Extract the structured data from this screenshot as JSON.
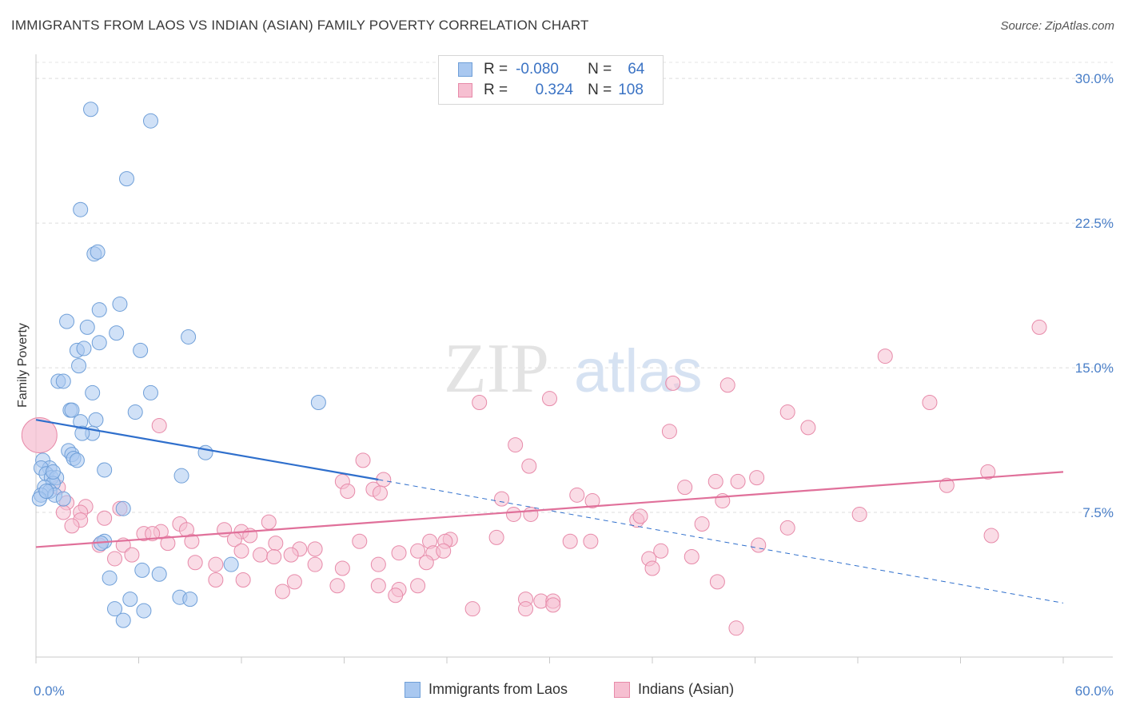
{
  "header": {
    "title": "IMMIGRANTS FROM LAOS VS INDIAN (ASIAN) FAMILY POVERTY CORRELATION CHART",
    "source": "Source: ZipAtlas.com"
  },
  "watermark": {
    "zip": "ZIP",
    "atlas": "atlas"
  },
  "legend": {
    "rows": [
      {
        "r_label": "R =",
        "r_value": "-0.080",
        "n_label": "N =",
        "n_value": "64",
        "color": "#a9c8f0",
        "border": "#6f9fd8"
      },
      {
        "r_label": "R =",
        "r_value": "0.324",
        "n_label": "N =",
        "n_value": "108",
        "color": "#f6bfd1",
        "border": "#e78aa9"
      }
    ]
  },
  "bottom_legend": [
    {
      "label": "Immigrants from Laos",
      "color": "#a9c8f0",
      "border": "#6f9fd8"
    },
    {
      "label": "Indians (Asian)",
      "color": "#f6bfd1",
      "border": "#e78aa9"
    }
  ],
  "chart_data": {
    "type": "scatter",
    "title": "IMMIGRANTS FROM LAOS VS INDIAN (ASIAN) FAMILY POVERTY CORRELATION CHART",
    "ylabel": "Family Poverty",
    "xlabel": "",
    "xlim": [
      0,
      60
    ],
    "ylim": [
      0,
      31
    ],
    "x_tick_labels": [
      "0.0%",
      "60.0%"
    ],
    "y_ticks": [
      7.5,
      15.0,
      22.5,
      30.0
    ],
    "y_tick_labels": [
      "7.5%",
      "15.0%",
      "22.5%",
      "30.0%"
    ],
    "grid": true,
    "series": [
      {
        "name": "Immigrants from Laos",
        "color": "#a9c8f0",
        "stroke": "#6f9fd8",
        "trend": {
          "x0": 0,
          "y0": 12.3,
          "x1": 20,
          "y1": 9.2,
          "dash_to_x": 60,
          "dash_to_y": 2.8,
          "color": "#2f6fcc"
        },
        "points": [
          [
            3.2,
            28.4
          ],
          [
            6.7,
            27.8
          ],
          [
            5.3,
            24.8
          ],
          [
            2.6,
            23.2
          ],
          [
            3.4,
            20.9
          ],
          [
            3.6,
            21.0
          ],
          [
            4.9,
            18.3
          ],
          [
            3.7,
            18.0
          ],
          [
            1.8,
            17.4
          ],
          [
            3.0,
            17.1
          ],
          [
            4.7,
            16.8
          ],
          [
            8.9,
            16.6
          ],
          [
            3.7,
            16.3
          ],
          [
            2.4,
            15.9
          ],
          [
            2.8,
            16.0
          ],
          [
            6.1,
            15.9
          ],
          [
            2.5,
            15.1
          ],
          [
            1.3,
            14.3
          ],
          [
            1.6,
            14.3
          ],
          [
            3.3,
            13.7
          ],
          [
            6.7,
            13.7
          ],
          [
            16.5,
            13.2
          ],
          [
            2.0,
            12.8
          ],
          [
            2.1,
            12.8
          ],
          [
            5.8,
            12.7
          ],
          [
            3.5,
            12.3
          ],
          [
            2.6,
            12.2
          ],
          [
            3.3,
            11.6
          ],
          [
            2.7,
            11.6
          ],
          [
            1.9,
            10.7
          ],
          [
            2.1,
            10.5
          ],
          [
            2.2,
            10.3
          ],
          [
            2.4,
            10.2
          ],
          [
            9.9,
            10.6
          ],
          [
            0.4,
            10.2
          ],
          [
            0.8,
            9.8
          ],
          [
            0.3,
            9.8
          ],
          [
            4.0,
            9.7
          ],
          [
            0.6,
            9.5
          ],
          [
            0.9,
            9.3
          ],
          [
            1.2,
            9.3
          ],
          [
            8.5,
            9.4
          ],
          [
            1.0,
            9.0
          ],
          [
            0.5,
            8.8
          ],
          [
            0.8,
            8.6
          ],
          [
            0.3,
            8.4
          ],
          [
            1.1,
            8.4
          ],
          [
            0.2,
            8.2
          ],
          [
            0.6,
            8.6
          ],
          [
            1.6,
            8.2
          ],
          [
            5.1,
            7.7
          ],
          [
            4.0,
            6.0
          ],
          [
            3.8,
            5.9
          ],
          [
            11.4,
            4.8
          ],
          [
            6.2,
            4.5
          ],
          [
            7.2,
            4.3
          ],
          [
            4.3,
            4.1
          ],
          [
            8.4,
            3.1
          ],
          [
            9.0,
            3.0
          ],
          [
            5.5,
            3.0
          ],
          [
            4.6,
            2.5
          ],
          [
            6.3,
            2.4
          ],
          [
            5.1,
            1.9
          ],
          [
            1.0,
            9.6
          ]
        ]
      },
      {
        "name": "Indians (Asian)",
        "color": "#f6bfd1",
        "stroke": "#e78aa9",
        "trend": {
          "x0": 0,
          "y0": 5.7,
          "x1": 60,
          "y1": 9.6,
          "color": "#e0709a"
        },
        "points": [
          [
            58.6,
            17.1
          ],
          [
            49.6,
            15.6
          ],
          [
            37.2,
            14.2
          ],
          [
            40.4,
            14.1
          ],
          [
            30.0,
            13.4
          ],
          [
            25.9,
            13.2
          ],
          [
            52.2,
            13.2
          ],
          [
            43.9,
            12.7
          ],
          [
            45.1,
            11.9
          ],
          [
            7.2,
            12.0
          ],
          [
            37.0,
            11.7
          ],
          [
            28.0,
            11.0
          ],
          [
            19.1,
            10.2
          ],
          [
            28.8,
            9.9
          ],
          [
            55.6,
            9.6
          ],
          [
            42.1,
            9.3
          ],
          [
            39.7,
            9.1
          ],
          [
            41.0,
            9.1
          ],
          [
            17.9,
            9.1
          ],
          [
            20.3,
            9.2
          ],
          [
            53.2,
            8.9
          ],
          [
            37.9,
            8.8
          ],
          [
            19.7,
            8.7
          ],
          [
            18.2,
            8.6
          ],
          [
            20.1,
            8.5
          ],
          [
            1.3,
            8.8
          ],
          [
            31.6,
            8.4
          ],
          [
            27.2,
            8.2
          ],
          [
            32.5,
            8.1
          ],
          [
            40.1,
            8.1
          ],
          [
            1.8,
            8.0
          ],
          [
            2.9,
            7.8
          ],
          [
            4.9,
            7.7
          ],
          [
            1.6,
            7.5
          ],
          [
            2.6,
            7.5
          ],
          [
            2.6,
            7.1
          ],
          [
            4.0,
            7.2
          ],
          [
            27.9,
            7.4
          ],
          [
            28.9,
            7.4
          ],
          [
            35.1,
            7.1
          ],
          [
            35.3,
            7.3
          ],
          [
            48.1,
            7.4
          ],
          [
            13.6,
            7.0
          ],
          [
            8.4,
            6.9
          ],
          [
            2.1,
            6.8
          ],
          [
            38.9,
            6.9
          ],
          [
            43.9,
            6.7
          ],
          [
            8.8,
            6.6
          ],
          [
            7.3,
            6.5
          ],
          [
            11.0,
            6.6
          ],
          [
            6.3,
            6.4
          ],
          [
            6.8,
            6.4
          ],
          [
            12.0,
            6.5
          ],
          [
            12.5,
            6.3
          ],
          [
            11.6,
            6.1
          ],
          [
            18.9,
            6.0
          ],
          [
            26.9,
            6.2
          ],
          [
            24.2,
            6.1
          ],
          [
            23.9,
            6.0
          ],
          [
            23.0,
            6.0
          ],
          [
            31.2,
            6.0
          ],
          [
            32.4,
            6.0
          ],
          [
            55.8,
            6.3
          ],
          [
            7.7,
            5.9
          ],
          [
            9.1,
            6.0
          ],
          [
            5.1,
            5.8
          ],
          [
            3.7,
            5.8
          ],
          [
            14.0,
            5.9
          ],
          [
            15.4,
            5.6
          ],
          [
            16.3,
            5.6
          ],
          [
            12.0,
            5.5
          ],
          [
            14.9,
            5.3
          ],
          [
            21.2,
            5.4
          ],
          [
            22.3,
            5.5
          ],
          [
            23.2,
            5.4
          ],
          [
            23.8,
            5.5
          ],
          [
            36.5,
            5.5
          ],
          [
            42.2,
            5.8
          ],
          [
            13.1,
            5.3
          ],
          [
            9.3,
            4.9
          ],
          [
            5.6,
            5.3
          ],
          [
            4.6,
            5.1
          ],
          [
            10.5,
            4.8
          ],
          [
            16.3,
            4.8
          ],
          [
            17.9,
            4.6
          ],
          [
            20.0,
            4.8
          ],
          [
            22.8,
            4.9
          ],
          [
            38.3,
            5.2
          ],
          [
            35.8,
            5.1
          ],
          [
            13.9,
            5.2
          ],
          [
            36.0,
            4.6
          ],
          [
            10.5,
            4.0
          ],
          [
            12.1,
            4.0
          ],
          [
            15.1,
            3.9
          ],
          [
            17.6,
            3.7
          ],
          [
            20.0,
            3.7
          ],
          [
            21.2,
            3.5
          ],
          [
            22.3,
            3.7
          ],
          [
            14.4,
            3.4
          ],
          [
            21.0,
            3.2
          ],
          [
            28.6,
            3.0
          ],
          [
            29.5,
            2.9
          ],
          [
            30.2,
            2.9
          ],
          [
            30.2,
            2.7
          ],
          [
            25.5,
            2.5
          ],
          [
            28.6,
            2.5
          ],
          [
            39.8,
            3.9
          ],
          [
            40.9,
            1.5
          ]
        ],
        "large_point": [
          0.2,
          11.5
        ]
      }
    ]
  }
}
